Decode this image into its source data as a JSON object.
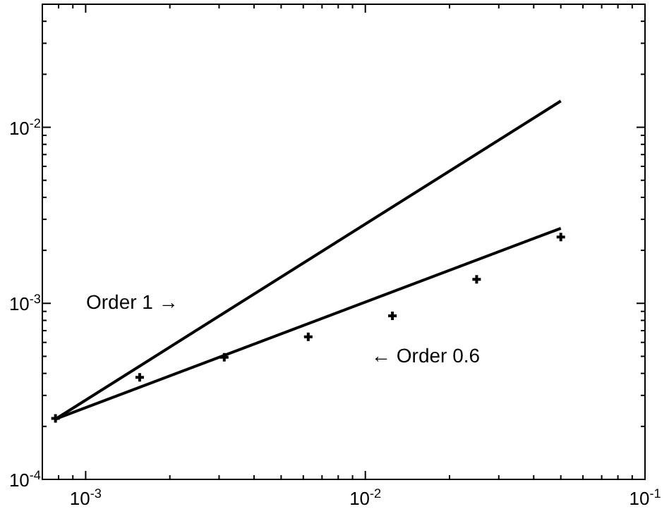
{
  "chart_data": {
    "type": "line",
    "log": "xy",
    "xlim": [
      0.0007,
      0.1
    ],
    "ylim": [
      0.0001,
      0.05
    ],
    "xticks": [
      {
        "value": 0.0008,
        "label": null
      },
      {
        "value": 0.0009,
        "label": null
      },
      {
        "value": 0.001,
        "label": "10$^{-3}$"
      },
      {
        "value": 0.002,
        "label": null
      },
      {
        "value": 0.003,
        "label": null
      },
      {
        "value": 0.004,
        "label": null
      },
      {
        "value": 0.005,
        "label": null
      },
      {
        "value": 0.006,
        "label": null
      },
      {
        "value": 0.007,
        "label": null
      },
      {
        "value": 0.008,
        "label": null
      },
      {
        "value": 0.009,
        "label": null
      },
      {
        "value": 0.01,
        "label": "10$^{-2}$"
      },
      {
        "value": 0.02,
        "label": null
      },
      {
        "value": 0.03,
        "label": null
      },
      {
        "value": 0.04,
        "label": null
      },
      {
        "value": 0.05,
        "label": null
      },
      {
        "value": 0.06,
        "label": null
      },
      {
        "value": 0.07,
        "label": null
      },
      {
        "value": 0.08,
        "label": null
      },
      {
        "value": 0.09,
        "label": null
      },
      {
        "value": 0.1,
        "label": "10$^{-1}$"
      }
    ],
    "yticks": [
      {
        "value": 0.0001,
        "label": "10$^{-4}$"
      },
      {
        "value": 0.0002,
        "label": null
      },
      {
        "value": 0.0003,
        "label": null
      },
      {
        "value": 0.0004,
        "label": null
      },
      {
        "value": 0.0005,
        "label": null
      },
      {
        "value": 0.0006,
        "label": null
      },
      {
        "value": 0.0007,
        "label": null
      },
      {
        "value": 0.0008,
        "label": null
      },
      {
        "value": 0.0009,
        "label": null
      },
      {
        "value": 0.001,
        "label": "10$^{-3}$"
      },
      {
        "value": 0.002,
        "label": null
      },
      {
        "value": 0.003,
        "label": null
      },
      {
        "value": 0.004,
        "label": null
      },
      {
        "value": 0.005,
        "label": null
      },
      {
        "value": 0.006,
        "label": null
      },
      {
        "value": 0.007,
        "label": null
      },
      {
        "value": 0.008,
        "label": null
      },
      {
        "value": 0.009,
        "label": null
      },
      {
        "value": 0.01,
        "label": "10$^{-2}$"
      },
      {
        "value": 0.02,
        "label": null
      },
      {
        "value": 0.03,
        "label": null
      },
      {
        "value": 0.04,
        "label": null
      },
      {
        "value": 0.05,
        "label": null
      }
    ],
    "series": [
      {
        "color": "#000000",
        "line_style": "solid",
        "x": [
          0.00078,
          0.05
        ],
        "values": [
          0.00022,
          0.0141
        ]
      },
      {
        "color": "#000000",
        "line_style": "solid",
        "x": [
          0.00078,
          0.05
        ],
        "values": [
          0.00022,
          0.00267
        ]
      },
      {
        "type": "scatter",
        "color": "#000000",
        "marker": "cross",
        "x": [
          0.00078,
          0.00156,
          0.00313,
          0.00625,
          0.0125,
          0.025,
          0.05
        ],
        "values": [
          0.000222,
          0.00038,
          0.000494,
          0.000645,
          0.00085,
          0.00137,
          0.00238
        ]
      }
    ],
    "annotations": [
      "Order 1 →",
      "← Order 0.6"
    ]
  }
}
